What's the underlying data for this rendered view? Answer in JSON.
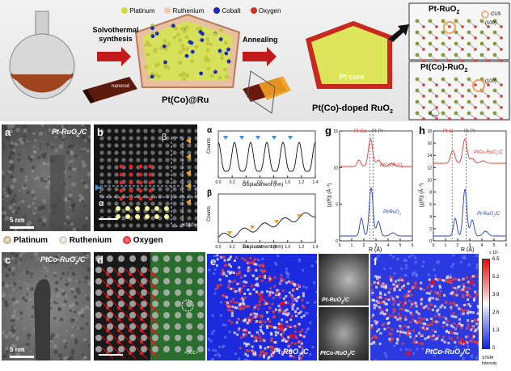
{
  "schematic": {
    "legend": [
      "Platinum",
      "Ruthenium",
      "Cobalt",
      "Oxygen"
    ],
    "legend_colors": [
      "#cddc39",
      "#f0c9a8",
      "#1a2db8",
      "#c8331e"
    ],
    "step1": "Solvothermal synthesis",
    "nanorod": "nanorod",
    "product1": "Pt(Co)@Ru",
    "step2": "Annealing",
    "pt_core": "Pt core",
    "product2": "Pt(Co)-doped RuO",
    "product2_sub": "2",
    "box_top_title": "Pt-RuO",
    "box_top_sub": "2",
    "box_top_plane": "(100)",
    "box_top_tag": "CUS",
    "box_bot_title": "Pt(Co)-RuO",
    "box_bot_sub": "2",
    "box_bot_plane": "(100)",
    "box_bot_tag": "V",
    "box_bot_tag_sub": "Ruo"
  },
  "panel_a": {
    "letter": "a",
    "title": "Pt-RuO",
    "title_sub": "2",
    "title_tail": "/C",
    "scale": "5 nm"
  },
  "panel_b": {
    "letter": "b",
    "beta": "β",
    "alpha": "α",
    "zone": "<010>"
  },
  "panel_profiles": {
    "alpha": "α",
    "beta": "β",
    "ylabel": "Counts",
    "xlabel": "Displacement (nm)",
    "xticks": [
      "0.0",
      "0.2",
      "0.4",
      "0.6",
      "0.8",
      "1.0",
      "1.2",
      "1.4"
    ]
  },
  "panel_g": {
    "letter": "g",
    "tag1": "Pt-Co",
    "tag2": "Pt-Pt",
    "curve1": "PtCo/RuO",
    "curve1_sub": "2",
    "curve2": "Pt/RuO",
    "curve2_sub": "2",
    "ylabel": "|χ(R)| (Å⁻³)",
    "xlabel": "R (Å)",
    "yticks": [
      "0",
      "5",
      "10",
      "15"
    ],
    "xticks": [
      "0",
      "1",
      "2",
      "3",
      "4",
      "5",
      "6"
    ]
  },
  "panel_h": {
    "letter": "h",
    "tag1": "Pt-O",
    "tag2": "Pt-Pt",
    "curve1": "PtCo-RuO",
    "curve1_sub": "2",
    "curve1_tail": "/C",
    "curve2": "Pt-RuO",
    "curve2_sub": "2",
    "curve2_tail": "/C",
    "ylabel": "|χ(R)| (Å⁻³)",
    "xlabel": "R (Å)",
    "yticks": [
      "0",
      "2",
      "4",
      "6",
      "8",
      "10",
      "12",
      "14",
      "16",
      "18"
    ],
    "xticks": [
      "0",
      "1",
      "2",
      "3",
      "4",
      "5",
      "6"
    ]
  },
  "atom_legend": [
    "Platinum",
    "Ruthenium",
    "Oxygen"
  ],
  "panel_c": {
    "letter": "c",
    "title": "PtCo-RuO",
    "title_sub": "2",
    "title_tail": "/C",
    "scale": "5 nm"
  },
  "panel_d": {
    "letter": "d",
    "zone": "<001>"
  },
  "panel_e": {
    "letter": "e",
    "title": "Pt-RuO",
    "title_sub": "2",
    "title_tail": "/C"
  },
  "panel_inset": {
    "top": "Pt-RuO",
    "top_sub": "2",
    "top_tail": "/C",
    "bottom": "PtCo-RuO",
    "bottom_sub": "2",
    "bottom_tail": "/C"
  },
  "panel_f": {
    "letter": "f",
    "title": "PtCo-RuO",
    "title_sub": "2",
    "title_tail": "/C"
  },
  "colorbar": {
    "exp": "x 10⁴",
    "ticks": [
      "6.5",
      "5.2",
      "3.9",
      "2.6",
      "1.3",
      "0"
    ],
    "label1": "STEM",
    "label2": "Intensity"
  },
  "colors": {
    "red_curve": "#e53935",
    "blue_curve": "#1e40c8",
    "triangle_blue": "#3d8fd6",
    "triangle_orange": "#f0a020",
    "arrow": "#e0102a"
  }
}
